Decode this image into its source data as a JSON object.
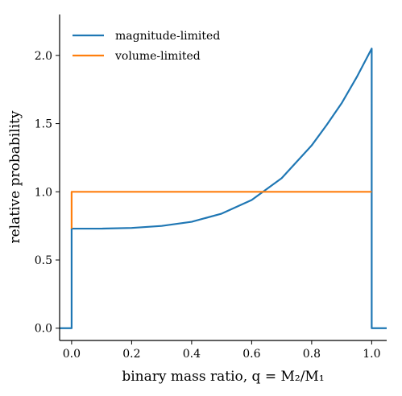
{
  "chart_data": {
    "type": "line",
    "title": "",
    "xlabel": "binary mass ratio, q = M₂/M₁",
    "ylabel": "relative probability",
    "xlim": [
      -0.04,
      1.05
    ],
    "ylim": [
      -0.09,
      2.3
    ],
    "x_ticks": [
      "0.0",
      "0.2",
      "0.4",
      "0.6",
      "0.8",
      "1.0"
    ],
    "y_ticks": [
      "0.0",
      "0.5",
      "1.0",
      "1.5",
      "2.0"
    ],
    "grid": false,
    "legend_position": "top-left",
    "series": [
      {
        "name": "magnitude-limited",
        "color": "#1f77b4",
        "x": [
          -0.04,
          0.0,
          0.0,
          0.1,
          0.2,
          0.3,
          0.4,
          0.5,
          0.6,
          0.7,
          0.8,
          0.85,
          0.9,
          0.95,
          1.0,
          1.0,
          1.05
        ],
        "y": [
          0.0,
          0.0,
          0.73,
          0.73,
          0.735,
          0.75,
          0.78,
          0.84,
          0.94,
          1.1,
          1.34,
          1.49,
          1.65,
          1.84,
          2.05,
          0.0,
          0.0
        ]
      },
      {
        "name": "volume-limited",
        "color": "#ff7f0e",
        "x": [
          0.0,
          0.0,
          1.0
        ],
        "y": [
          0.73,
          1.0,
          1.0
        ]
      }
    ]
  }
}
